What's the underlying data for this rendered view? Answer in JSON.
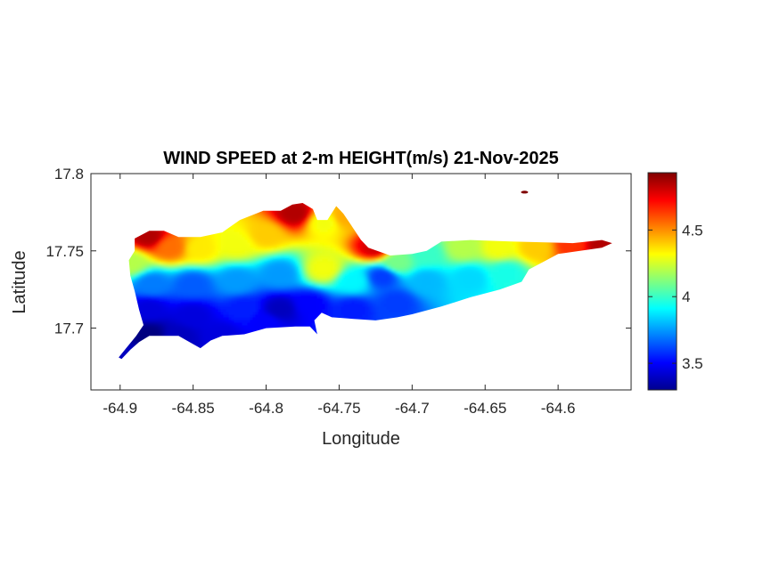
{
  "chart_data": {
    "type": "heatmap",
    "title": "WIND SPEED at 2-m HEIGHT(m/s) 21-Nov-2025",
    "xlabel": "Longitude",
    "ylabel": "Latitude",
    "xlim": [
      -64.92,
      -64.55
    ],
    "ylim": [
      17.66,
      17.8
    ],
    "xticks": [
      "-64.9",
      "-64.85",
      "-64.8",
      "-64.75",
      "-64.7",
      "-64.65",
      "-64.6"
    ],
    "yticks": [
      "17.7",
      "17.75",
      "17.8"
    ],
    "colormap": "jet",
    "clim": [
      3.3,
      4.93
    ],
    "colorbar_ticks": [
      "3.5",
      "4",
      "4.5"
    ],
    "grid": false,
    "field_samples": [
      {
        "lon": -64.88,
        "lat": 17.759,
        "value": 4.85
      },
      {
        "lon": -64.865,
        "lat": 17.752,
        "value": 4.55
      },
      {
        "lon": -64.845,
        "lat": 17.751,
        "value": 4.35
      },
      {
        "lon": -64.82,
        "lat": 17.754,
        "value": 4.3
      },
      {
        "lon": -64.8,
        "lat": 17.76,
        "value": 4.4
      },
      {
        "lon": -64.78,
        "lat": 17.774,
        "value": 4.85
      },
      {
        "lon": -64.76,
        "lat": 17.768,
        "value": 4.3
      },
      {
        "lon": -64.745,
        "lat": 17.772,
        "value": 4.45
      },
      {
        "lon": -64.725,
        "lat": 17.752,
        "value": 4.8
      },
      {
        "lon": -64.71,
        "lat": 17.742,
        "value": 4.1
      },
      {
        "lon": -64.69,
        "lat": 17.748,
        "value": 4.0
      },
      {
        "lon": -64.665,
        "lat": 17.752,
        "value": 4.2
      },
      {
        "lon": -64.64,
        "lat": 17.752,
        "value": 4.3
      },
      {
        "lon": -64.615,
        "lat": 17.752,
        "value": 4.4
      },
      {
        "lon": -64.59,
        "lat": 17.754,
        "value": 4.65
      },
      {
        "lon": -64.57,
        "lat": 17.754,
        "value": 4.85
      },
      {
        "lon": -64.893,
        "lat": 17.742,
        "value": 4.2
      },
      {
        "lon": -64.878,
        "lat": 17.728,
        "value": 3.7
      },
      {
        "lon": -64.85,
        "lat": 17.728,
        "value": 3.65
      },
      {
        "lon": -64.82,
        "lat": 17.73,
        "value": 3.75
      },
      {
        "lon": -64.79,
        "lat": 17.735,
        "value": 3.75
      },
      {
        "lon": -64.76,
        "lat": 17.738,
        "value": 4.3
      },
      {
        "lon": -64.74,
        "lat": 17.73,
        "value": 3.9
      },
      {
        "lon": -64.72,
        "lat": 17.733,
        "value": 3.6
      },
      {
        "lon": -64.69,
        "lat": 17.73,
        "value": 3.8
      },
      {
        "lon": -64.66,
        "lat": 17.732,
        "value": 3.85
      },
      {
        "lon": -64.635,
        "lat": 17.735,
        "value": 3.95
      },
      {
        "lon": -64.88,
        "lat": 17.712,
        "value": 3.45
      },
      {
        "lon": -64.85,
        "lat": 17.708,
        "value": 3.45
      },
      {
        "lon": -64.815,
        "lat": 17.712,
        "value": 3.55
      },
      {
        "lon": -64.79,
        "lat": 17.712,
        "value": 3.4
      },
      {
        "lon": -64.77,
        "lat": 17.715,
        "value": 3.5
      },
      {
        "lon": -64.74,
        "lat": 17.712,
        "value": 3.55
      },
      {
        "lon": -64.71,
        "lat": 17.716,
        "value": 3.6
      },
      {
        "lon": -64.88,
        "lat": 17.695,
        "value": 3.3
      },
      {
        "lon": -64.86,
        "lat": 17.694,
        "value": 3.4
      },
      {
        "lon": -64.83,
        "lat": 17.695,
        "value": 3.45
      },
      {
        "lon": -64.8,
        "lat": 17.703,
        "value": 3.5
      },
      {
        "lon": -64.897,
        "lat": 17.682,
        "value": 3.4
      }
    ],
    "land_outline": [
      [
        -64.899,
        17.68
      ],
      [
        -64.893,
        17.686
      ],
      [
        -64.887,
        17.691
      ],
      [
        -64.88,
        17.695
      ],
      [
        -64.86,
        17.695
      ],
      [
        -64.845,
        17.687
      ],
      [
        -64.838,
        17.692
      ],
      [
        -64.83,
        17.695
      ],
      [
        -64.815,
        17.696
      ],
      [
        -64.8,
        17.7
      ],
      [
        -64.78,
        17.701
      ],
      [
        -64.77,
        17.701
      ],
      [
        -64.765,
        17.696
      ],
      [
        -64.767,
        17.705
      ],
      [
        -64.762,
        17.71
      ],
      [
        -64.755,
        17.707
      ],
      [
        -64.74,
        17.706
      ],
      [
        -64.725,
        17.705
      ],
      [
        -64.71,
        17.707
      ],
      [
        -64.7,
        17.709
      ],
      [
        -64.68,
        17.714
      ],
      [
        -64.66,
        17.72
      ],
      [
        -64.64,
        17.725
      ],
      [
        -64.625,
        17.73
      ],
      [
        -64.62,
        17.738
      ],
      [
        -64.612,
        17.742
      ],
      [
        -64.6,
        17.748
      ],
      [
        -64.585,
        17.75
      ],
      [
        -64.57,
        17.752
      ],
      [
        -64.563,
        17.755
      ],
      [
        -64.57,
        17.757
      ],
      [
        -64.59,
        17.755
      ],
      [
        -64.63,
        17.756
      ],
      [
        -64.66,
        17.757
      ],
      [
        -64.68,
        17.756
      ],
      [
        -64.69,
        17.75
      ],
      [
        -64.7,
        17.748
      ],
      [
        -64.715,
        17.747
      ],
      [
        -64.73,
        17.752
      ],
      [
        -64.735,
        17.757
      ],
      [
        -64.742,
        17.767
      ],
      [
        -64.747,
        17.774
      ],
      [
        -64.752,
        17.779
      ],
      [
        -64.758,
        17.77
      ],
      [
        -64.765,
        17.77
      ],
      [
        -64.768,
        17.777
      ],
      [
        -64.775,
        17.781
      ],
      [
        -64.782,
        17.78
      ],
      [
        -64.79,
        17.776
      ],
      [
        -64.802,
        17.776
      ],
      [
        -64.818,
        17.77
      ],
      [
        -64.83,
        17.762
      ],
      [
        -64.845,
        17.759
      ],
      [
        -64.86,
        17.759
      ],
      [
        -64.87,
        17.763
      ],
      [
        -64.88,
        17.763
      ],
      [
        -64.89,
        17.758
      ],
      [
        -64.89,
        17.75
      ],
      [
        -64.894,
        17.744
      ],
      [
        -64.893,
        17.734
      ],
      [
        -64.89,
        17.724
      ],
      [
        -64.887,
        17.712
      ],
      [
        -64.884,
        17.702
      ],
      [
        -64.889,
        17.695
      ],
      [
        -64.895,
        17.688
      ],
      [
        -64.901,
        17.681
      ]
    ],
    "islets": [
      {
        "lon": -64.623,
        "lat": 17.788,
        "value": 4.93
      }
    ]
  }
}
